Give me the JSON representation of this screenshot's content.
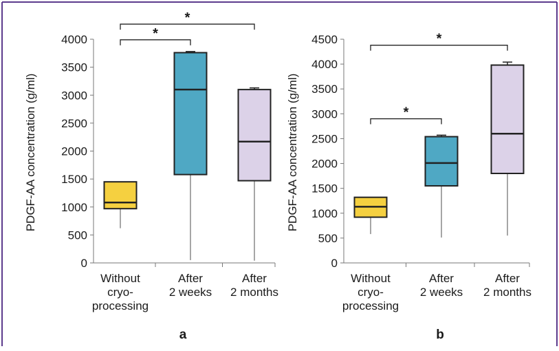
{
  "frame": {
    "border_color": "#5b3a8c"
  },
  "chart_data": [
    {
      "type": "box",
      "panel_label": "a",
      "ylabel": "PDGF-AA concentration (g/ml)",
      "ylim": [
        0,
        4000
      ],
      "yticks": [
        0,
        500,
        1000,
        1500,
        2000,
        2500,
        3000,
        3500,
        4000
      ],
      "categories": [
        [
          "Without",
          "cryo-",
          "processing"
        ],
        [
          "After",
          "2 weeks"
        ],
        [
          "After",
          "2 months"
        ]
      ],
      "boxes": [
        {
          "min": 620,
          "q1": 970,
          "median": 1080,
          "q3": 1450,
          "max": 1450,
          "color": "#f5d040"
        },
        {
          "min": 50,
          "q1": 1580,
          "median": 3100,
          "q3": 3760,
          "max": 3780,
          "color": "#4fa8c4"
        },
        {
          "min": 40,
          "q1": 1470,
          "median": 2170,
          "q3": 3100,
          "max": 3130,
          "color": "#dcd2e8"
        }
      ],
      "significance": [
        {
          "from": 0,
          "to": 2,
          "label": "*",
          "level": 4270
        },
        {
          "from": 0,
          "to": 1,
          "label": "*",
          "level": 3990
        }
      ]
    },
    {
      "type": "box",
      "panel_label": "b",
      "ylabel": "PDGF-AA concentration (g/ml)",
      "ylim": [
        0,
        4500
      ],
      "yticks": [
        0,
        500,
        1000,
        1500,
        2000,
        2500,
        3000,
        3500,
        4000,
        4500
      ],
      "categories": [
        [
          "Without",
          "cryo-",
          "processing"
        ],
        [
          "After",
          "2 weeks"
        ],
        [
          "After",
          "2 months"
        ]
      ],
      "boxes": [
        {
          "min": 580,
          "q1": 920,
          "median": 1130,
          "q3": 1320,
          "max": 1320,
          "color": "#f5d040"
        },
        {
          "min": 510,
          "q1": 1550,
          "median": 2010,
          "q3": 2540,
          "max": 2570,
          "color": "#4fa8c4"
        },
        {
          "min": 550,
          "q1": 1800,
          "median": 2600,
          "q3": 3980,
          "max": 4040,
          "color": "#dcd2e8"
        }
      ],
      "significance": [
        {
          "from": 0,
          "to": 2,
          "label": "*",
          "level": 4380
        },
        {
          "from": 0,
          "to": 1,
          "label": "*",
          "level": 2900
        }
      ]
    }
  ]
}
